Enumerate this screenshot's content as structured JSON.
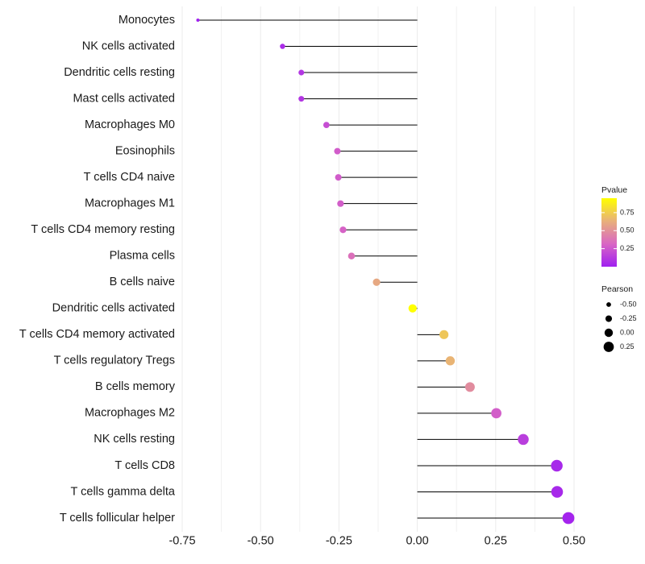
{
  "chart_data": {
    "type": "lollipop",
    "title": "",
    "xlabel": "",
    "ylabel": "",
    "xlim": [
      -0.75,
      0.5
    ],
    "x_ticks": [
      -0.75,
      -0.5,
      -0.25,
      0.0,
      0.25,
      0.5
    ],
    "x_tick_labels": [
      "-0.75",
      "-0.50",
      "-0.25",
      "0.00",
      "0.25",
      "0.50"
    ],
    "grid": true,
    "categories": [
      "Monocytes",
      "NK cells activated",
      "Dendritic cells resting",
      "Mast cells activated",
      "Macrophages M0",
      "Eosinophils",
      "T cells CD4 naive",
      "Macrophages M1",
      "T cells CD4 memory resting",
      "Plasma cells",
      "B cells naive",
      "Dendritic cells activated",
      "T cells CD4 memory activated",
      "T cells regulatory  Tregs ",
      "B cells memory",
      "Macrophages M2",
      "NK cells resting",
      "T cells CD8",
      "T cells gamma delta",
      "T cells follicular helper"
    ],
    "pearson": [
      -0.7,
      -0.43,
      -0.37,
      -0.37,
      -0.29,
      -0.255,
      -0.252,
      -0.245,
      -0.237,
      -0.21,
      -0.13,
      -0.015,
      0.085,
      0.105,
      0.168,
      0.252,
      0.338,
      0.445,
      0.446,
      0.482
    ],
    "pvalue": [
      0.0,
      0.06,
      0.1,
      0.1,
      0.21,
      0.27,
      0.27,
      0.28,
      0.3,
      0.36,
      0.6,
      0.95,
      0.72,
      0.65,
      0.48,
      0.28,
      0.14,
      0.04,
      0.04,
      0.02
    ],
    "color_legend": {
      "title": "Pvalue",
      "ticks": [
        0.25,
        0.5,
        0.75
      ],
      "tick_labels": [
        "0.25",
        "0.50",
        "0.75"
      ],
      "range": [
        0.0,
        0.95
      ],
      "colors": [
        "#a020f0",
        "#d966c4",
        "#e8b07a",
        "#ffff00"
      ]
    },
    "size_legend": {
      "title": "Pearson",
      "values": [
        -0.5,
        -0.25,
        0.0,
        0.25
      ],
      "labels": [
        "-0.50",
        "-0.25",
        "0.00",
        "0.25"
      ]
    },
    "legend_position": "right"
  }
}
